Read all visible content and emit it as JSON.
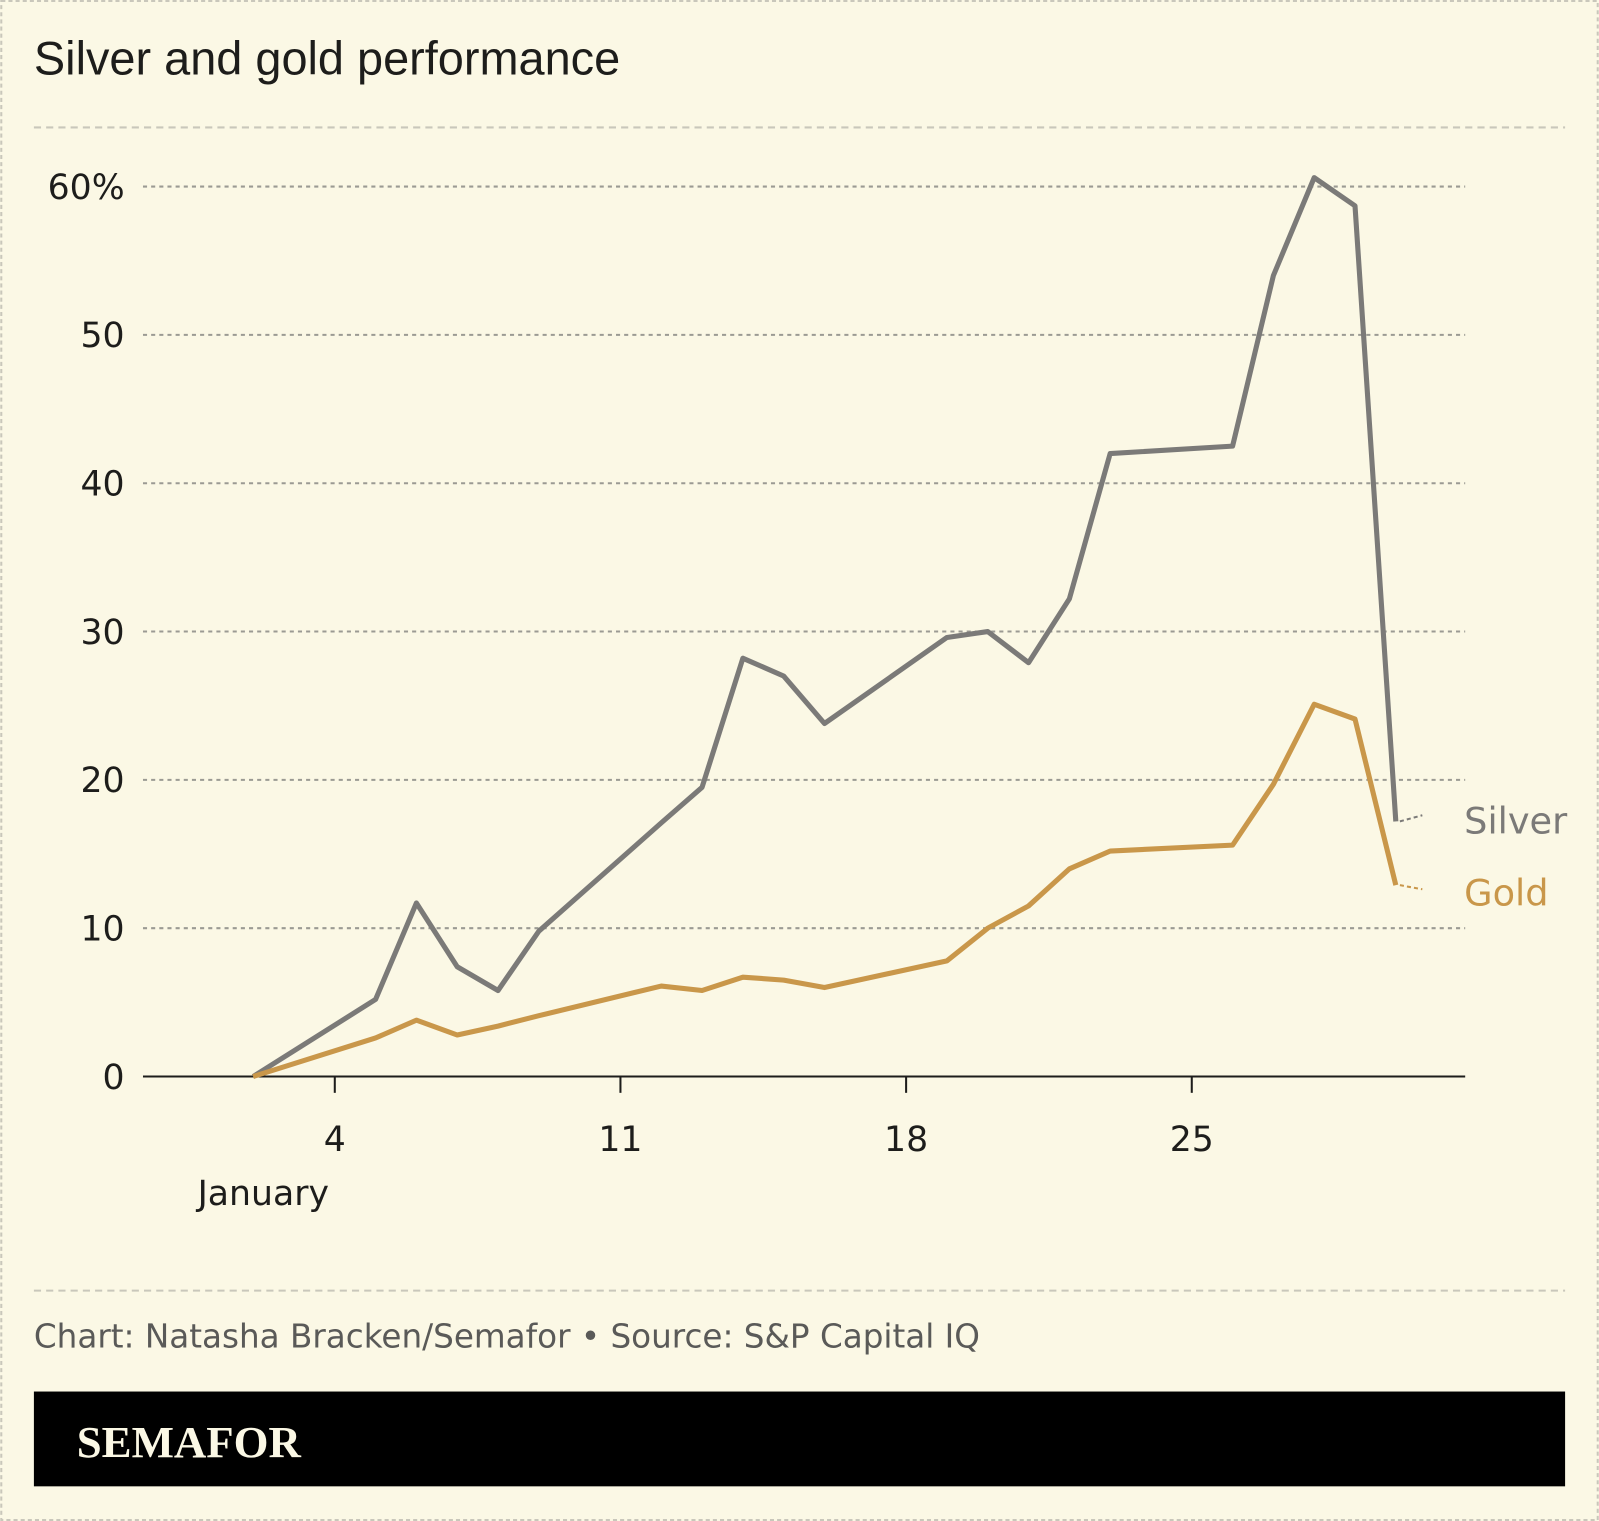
{
  "title": "Silver and gold performance",
  "credit": "Chart: Natasha Bracken/Semafor • Source: S&P Capital IQ",
  "logo": "SEMAFOR",
  "colors": {
    "background": "#fbf8e5",
    "silver": "#7b7a78",
    "gold": "#c9974a",
    "footer_bar": "#000000"
  },
  "chart_data": {
    "type": "line",
    "title": "Silver and gold performance",
    "x_unit": "day of January",
    "x": [
      2,
      5,
      6,
      7,
      8,
      9,
      12,
      13,
      14,
      15,
      16,
      19,
      20,
      21,
      22,
      23,
      26,
      27,
      28,
      29,
      30
    ],
    "xlim": [
      -0.7,
      31.7
    ],
    "x_ticks": [
      4,
      11,
      18,
      25
    ],
    "x_tick_labels": [
      "4",
      "11",
      "18",
      "25"
    ],
    "x_month_label": "January",
    "ylim": [
      0,
      60
    ],
    "y_ticks": [
      0,
      10,
      20,
      30,
      40,
      50,
      60
    ],
    "y_tick_labels": [
      "0",
      "10",
      "20",
      "30",
      "40",
      "50",
      "60%"
    ],
    "grid": true,
    "series": [
      {
        "name": "Silver",
        "color": "#7b7a78",
        "values": [
          0,
          5.2,
          11.7,
          7.4,
          5.8,
          9.8,
          17.1,
          19.5,
          28.2,
          27.0,
          23.8,
          29.6,
          30.0,
          27.9,
          32.2,
          42.0,
          42.5,
          54.0,
          60.6,
          58.7,
          17.2
        ]
      },
      {
        "name": "Gold",
        "color": "#c9974a",
        "values": [
          0,
          2.6,
          3.8,
          2.8,
          3.4,
          4.1,
          6.1,
          5.8,
          6.7,
          6.5,
          6.0,
          7.8,
          10.0,
          11.5,
          14.0,
          15.2,
          15.6,
          19.7,
          25.1,
          24.1,
          12.9
        ]
      }
    ]
  }
}
